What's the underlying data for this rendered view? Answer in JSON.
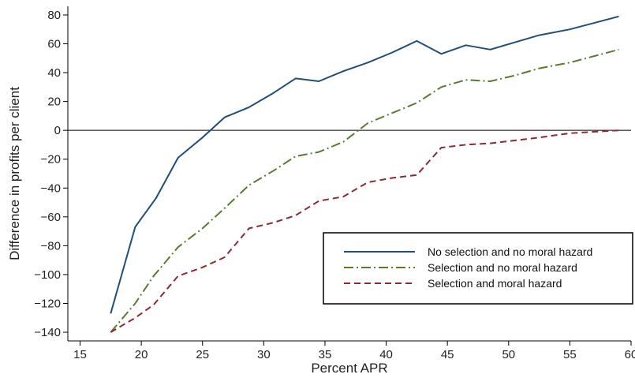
{
  "chart_data": {
    "type": "line",
    "xlabel": "Percent APR",
    "ylabel": "Difference in profits per client",
    "xlim": [
      14,
      60
    ],
    "ylim": [
      -146,
      86
    ],
    "xticks": [
      15,
      20,
      25,
      30,
      35,
      40,
      45,
      50,
      55,
      60
    ],
    "yticks": [
      80,
      60,
      40,
      20,
      0,
      -20,
      -40,
      -60,
      -80,
      -100,
      -120,
      -140
    ],
    "reference_line_y": 0,
    "grid": false,
    "legend_position": "bottom-right",
    "series": [
      {
        "name": "No selection and no moral hazard",
        "color": "#1f4e79",
        "dash": "solid",
        "points": [
          [
            17.5,
            -127
          ],
          [
            19.5,
            -67
          ],
          [
            21.2,
            -47
          ],
          [
            23,
            -19
          ],
          [
            25,
            -5
          ],
          [
            26.8,
            9
          ],
          [
            28.8,
            16
          ],
          [
            30.8,
            26
          ],
          [
            32.6,
            36
          ],
          [
            34.5,
            34
          ],
          [
            36.5,
            41
          ],
          [
            38.5,
            47
          ],
          [
            40.5,
            54
          ],
          [
            42.5,
            62
          ],
          [
            44.5,
            53
          ],
          [
            46.5,
            59
          ],
          [
            48.5,
            56
          ],
          [
            50.5,
            61
          ],
          [
            52.5,
            66
          ],
          [
            55,
            70
          ],
          [
            59,
            79
          ]
        ]
      },
      {
        "name": "Selection and no moral hazard",
        "color": "#5a7a2e",
        "dash": "dashdot",
        "points": [
          [
            17.5,
            -140
          ],
          [
            19.5,
            -120
          ],
          [
            21,
            -101
          ],
          [
            23,
            -81
          ],
          [
            25,
            -68
          ],
          [
            26.8,
            -54
          ],
          [
            28.8,
            -38
          ],
          [
            30.8,
            -28
          ],
          [
            32.6,
            -18
          ],
          [
            34.5,
            -15
          ],
          [
            36.5,
            -8
          ],
          [
            38.5,
            5
          ],
          [
            40.5,
            12
          ],
          [
            42.5,
            19
          ],
          [
            44.5,
            30
          ],
          [
            46.5,
            35
          ],
          [
            48.5,
            34
          ],
          [
            50.5,
            38
          ],
          [
            52.5,
            43
          ],
          [
            55,
            47
          ],
          [
            59,
            56
          ]
        ]
      },
      {
        "name": "Selection and moral hazard",
        "color": "#8b2a35",
        "dash": "dashed",
        "points": [
          [
            17.5,
            -140
          ],
          [
            19.5,
            -130
          ],
          [
            21,
            -121
          ],
          [
            23,
            -101
          ],
          [
            25,
            -95
          ],
          [
            26.8,
            -88
          ],
          [
            28.8,
            -68
          ],
          [
            30.8,
            -64
          ],
          [
            32.6,
            -59
          ],
          [
            34.5,
            -49
          ],
          [
            36.5,
            -46
          ],
          [
            38.5,
            -36
          ],
          [
            40.5,
            -33
          ],
          [
            42.5,
            -31
          ],
          [
            44.5,
            -12
          ],
          [
            46.5,
            -10
          ],
          [
            48.5,
            -9
          ],
          [
            50.5,
            -7
          ],
          [
            52.5,
            -5
          ],
          [
            55,
            -2
          ],
          [
            59,
            0
          ]
        ]
      }
    ]
  }
}
